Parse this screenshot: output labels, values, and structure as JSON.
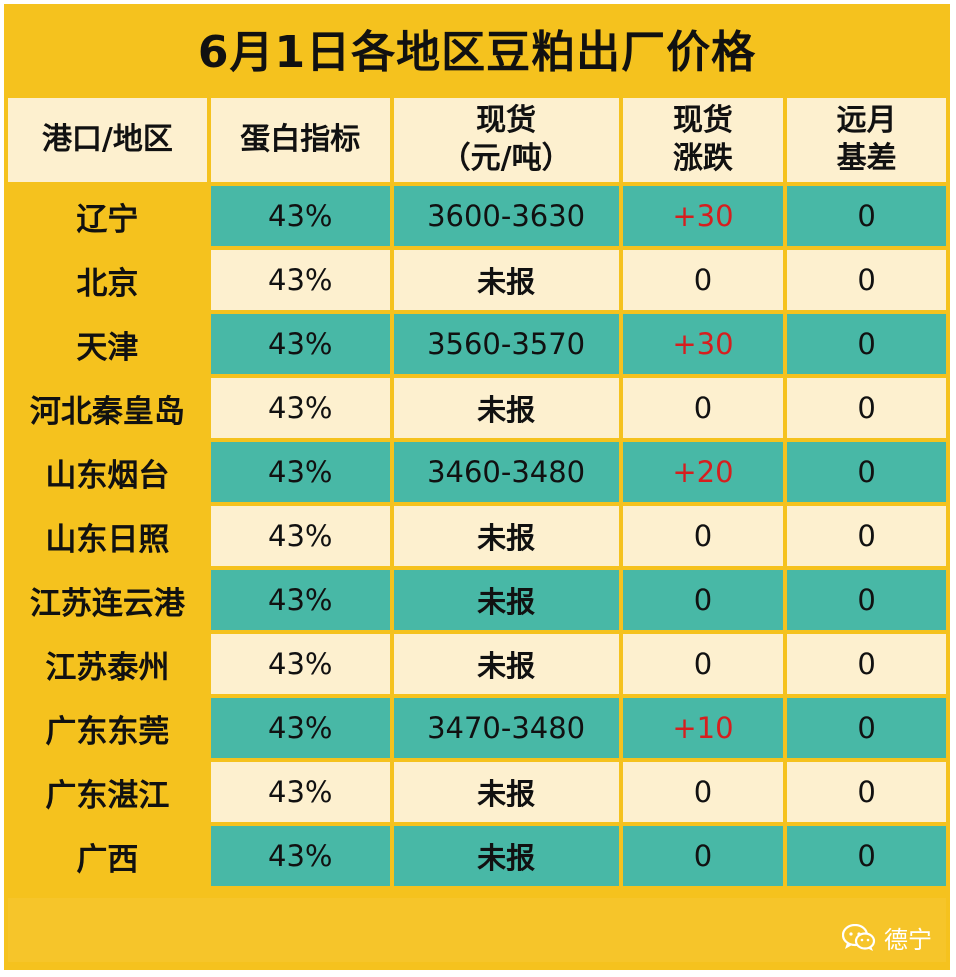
{
  "title": "6月1日各地区豆粕出厂价格",
  "headers": {
    "region": "港口/地区",
    "protein": "蛋白指标",
    "spot_line1": "现货",
    "spot_line2": "（元/吨）",
    "change_line1": "现货",
    "change_line2": "涨跌",
    "basis_line1": "远月",
    "basis_line2": "基差"
  },
  "rows": [
    {
      "region": "辽宁",
      "protein": "43%",
      "spot": "3600-3630",
      "change": "+30",
      "basis": "0"
    },
    {
      "region": "北京",
      "protein": "43%",
      "spot": "未报",
      "change": "0",
      "basis": "0"
    },
    {
      "region": "天津",
      "protein": "43%",
      "spot": "3560-3570",
      "change": "+30",
      "basis": "0"
    },
    {
      "region": "河北秦皇岛",
      "protein": "43%",
      "spot": "未报",
      "change": "0",
      "basis": "0"
    },
    {
      "region": "山东烟台",
      "protein": "43%",
      "spot": "3460-3480",
      "change": "+20",
      "basis": "0"
    },
    {
      "region": "山东日照",
      "protein": "43%",
      "spot": "未报",
      "change": "0",
      "basis": "0"
    },
    {
      "region": "江苏连云港",
      "protein": "43%",
      "spot": "未报",
      "change": "0",
      "basis": "0"
    },
    {
      "region": "江苏泰州",
      "protein": "43%",
      "spot": "未报",
      "change": "0",
      "basis": "0"
    },
    {
      "region": "广东东莞",
      "protein": "43%",
      "spot": "3470-3480",
      "change": "+10",
      "basis": "0"
    },
    {
      "region": "广东湛江",
      "protein": "43%",
      "spot": "未报",
      "change": "0",
      "basis": "0"
    },
    {
      "region": "广西",
      "protein": "43%",
      "spot": "未报",
      "change": "0",
      "basis": "0"
    }
  ],
  "watermark": {
    "icon": "wechat-icon",
    "text": "德宁"
  },
  "colors": {
    "frame": "#f5c21e",
    "teal": "#48b8a6",
    "cream": "#fdf0cf",
    "increase": "#d61f1f"
  }
}
